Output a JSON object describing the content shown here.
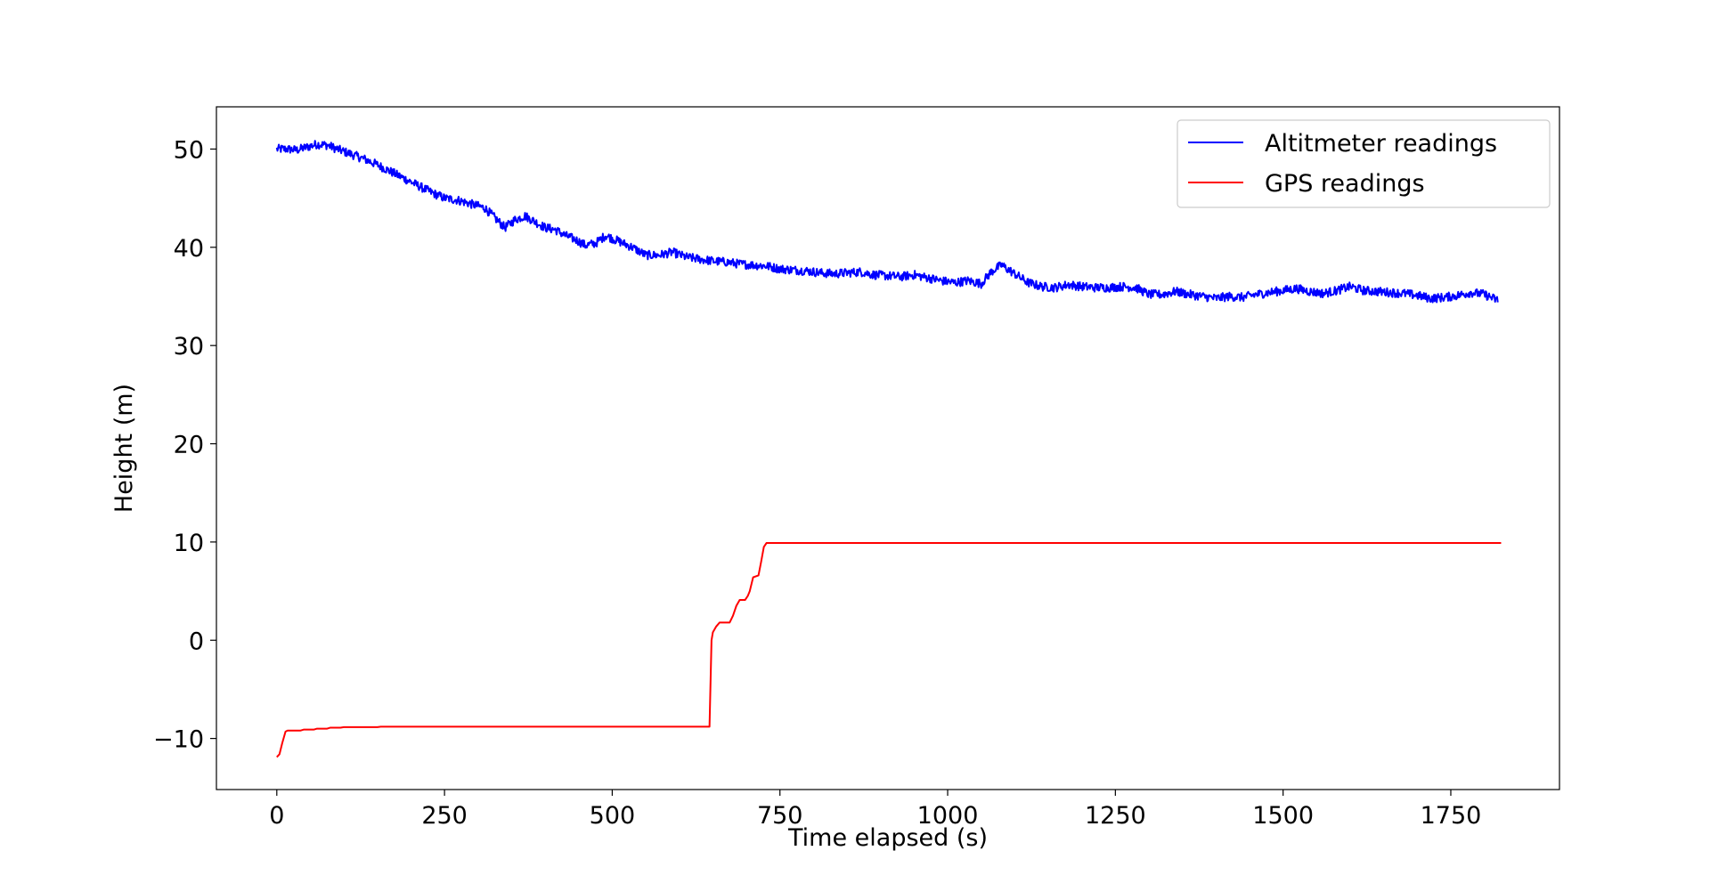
{
  "chart_data": {
    "type": "line",
    "title": "",
    "xlabel": "Time elapsed (s)",
    "ylabel": "Height (m)",
    "xlim": [
      -90,
      1912
    ],
    "ylim": [
      -15.2,
      54.3
    ],
    "xticks": [
      0,
      250,
      500,
      750,
      1000,
      1250,
      1500,
      1750
    ],
    "xtick_labels": [
      "0",
      "250",
      "500",
      "750",
      "1000",
      "1250",
      "1500",
      "1750"
    ],
    "yticks": [
      -10,
      0,
      10,
      20,
      30,
      40,
      50
    ],
    "ytick_labels": [
      "−10",
      "0",
      "10",
      "20",
      "30",
      "40",
      "50"
    ],
    "grid": false,
    "legend_position": "top-right",
    "series": [
      {
        "name": "Altitmeter readings",
        "color": "#0000ff",
        "noise": 0.45,
        "x": [
          0,
          15,
          30,
          45,
          60,
          75,
          90,
          110,
          130,
          150,
          170,
          190,
          210,
          230,
          250,
          270,
          290,
          310,
          325,
          340,
          355,
          370,
          385,
          400,
          415,
          430,
          445,
          460,
          475,
          490,
          510,
          530,
          550,
          570,
          590,
          610,
          630,
          650,
          670,
          690,
          710,
          730,
          750,
          770,
          790,
          810,
          830,
          850,
          870,
          890,
          910,
          930,
          950,
          970,
          990,
          1010,
          1030,
          1050,
          1065,
          1080,
          1100,
          1120,
          1140,
          1160,
          1180,
          1200,
          1220,
          1240,
          1260,
          1280,
          1300,
          1320,
          1340,
          1360,
          1380,
          1400,
          1420,
          1440,
          1460,
          1480,
          1500,
          1520,
          1540,
          1560,
          1580,
          1600,
          1620,
          1640,
          1660,
          1680,
          1700,
          1720,
          1740,
          1760,
          1780,
          1800,
          1820
        ],
        "y": [
          50.0,
          50.0,
          49.9,
          50.2,
          50.5,
          50.4,
          50.0,
          49.5,
          49.0,
          48.4,
          47.7,
          47.0,
          46.3,
          45.6,
          45.0,
          44.8,
          44.4,
          44.0,
          43.0,
          42.0,
          42.8,
          43.2,
          42.6,
          42.0,
          41.8,
          41.2,
          40.8,
          40.2,
          40.4,
          41.2,
          40.6,
          40.0,
          39.2,
          39.2,
          39.5,
          39.0,
          38.8,
          38.6,
          38.5,
          38.3,
          38.2,
          38.1,
          37.8,
          37.7,
          37.6,
          37.4,
          37.3,
          37.4,
          37.5,
          37.2,
          37.1,
          37.0,
          37.2,
          36.9,
          36.6,
          36.4,
          36.6,
          36.3,
          37.5,
          38.2,
          37.3,
          36.4,
          36.0,
          35.9,
          36.2,
          36.0,
          35.9,
          35.9,
          36.0,
          35.9,
          35.2,
          35.2,
          35.5,
          35.2,
          35.0,
          34.8,
          35.0,
          34.9,
          35.2,
          35.4,
          35.6,
          35.8,
          35.5,
          35.3,
          35.6,
          36.0,
          35.6,
          35.5,
          35.4,
          35.3,
          35.1,
          34.8,
          34.9,
          35.1,
          35.4,
          35.2,
          34.6
        ]
      },
      {
        "name": "GPS readings",
        "color": "#ff0000",
        "noise": 0,
        "x": [
          0,
          4,
          8,
          13,
          16,
          20,
          35,
          40,
          55,
          60,
          75,
          80,
          95,
          100,
          150,
          155,
          645,
          648,
          650,
          655,
          660,
          665,
          675,
          680,
          685,
          690,
          698,
          702,
          705,
          710,
          718,
          722,
          726,
          730,
          1825
        ],
        "y": [
          -11.9,
          -11.6,
          -10.5,
          -9.3,
          -9.2,
          -9.2,
          -9.2,
          -9.1,
          -9.1,
          -9.0,
          -9.0,
          -8.9,
          -8.9,
          -8.85,
          -8.85,
          -8.8,
          -8.8,
          0.0,
          0.8,
          1.4,
          1.8,
          1.8,
          1.8,
          2.5,
          3.5,
          4.1,
          4.1,
          4.5,
          5.0,
          6.4,
          6.6,
          8.0,
          9.5,
          9.9,
          9.9
        ]
      }
    ]
  }
}
